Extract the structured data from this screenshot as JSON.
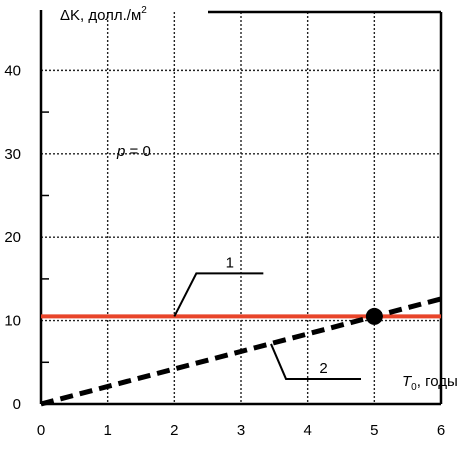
{
  "chart_data": {
    "type": "line",
    "ylabel": "ΔK, долл./м²",
    "ylabel_parts": {
      "main": "ΔK, долл./м",
      "sup": "2"
    },
    "xlabel": "T0, годы",
    "xlabel_parts": {
      "main": "T",
      "sub": "0",
      "rest": ", годы"
    },
    "annotation": "p = 0",
    "annotation_parts": {
      "var": "p",
      "rest": " = 0"
    },
    "xlim": [
      0,
      6
    ],
    "ylim": [
      0,
      47
    ],
    "x_ticks": [
      "0",
      "1",
      "2",
      "3",
      "4",
      "5",
      "6"
    ],
    "y_ticks": [
      "0",
      "10",
      "20",
      "30",
      "40"
    ],
    "grid": true,
    "series": [
      {
        "name": "1",
        "style": "solid",
        "color": "#e8452a",
        "x": [
          0,
          6
        ],
        "y": [
          10.5,
          10.5
        ]
      },
      {
        "name": "2",
        "style": "dashed",
        "color": "#000000",
        "x": [
          0,
          6
        ],
        "y": [
          0,
          12.6
        ]
      }
    ],
    "intersection": {
      "x": 5.0,
      "y": 10.5
    },
    "leaders": [
      {
        "label": "1",
        "series": "1",
        "x": 2.0,
        "y": 10.5
      },
      {
        "label": "2",
        "series": "2",
        "x": 3.45,
        "y": 7.2
      }
    ]
  }
}
